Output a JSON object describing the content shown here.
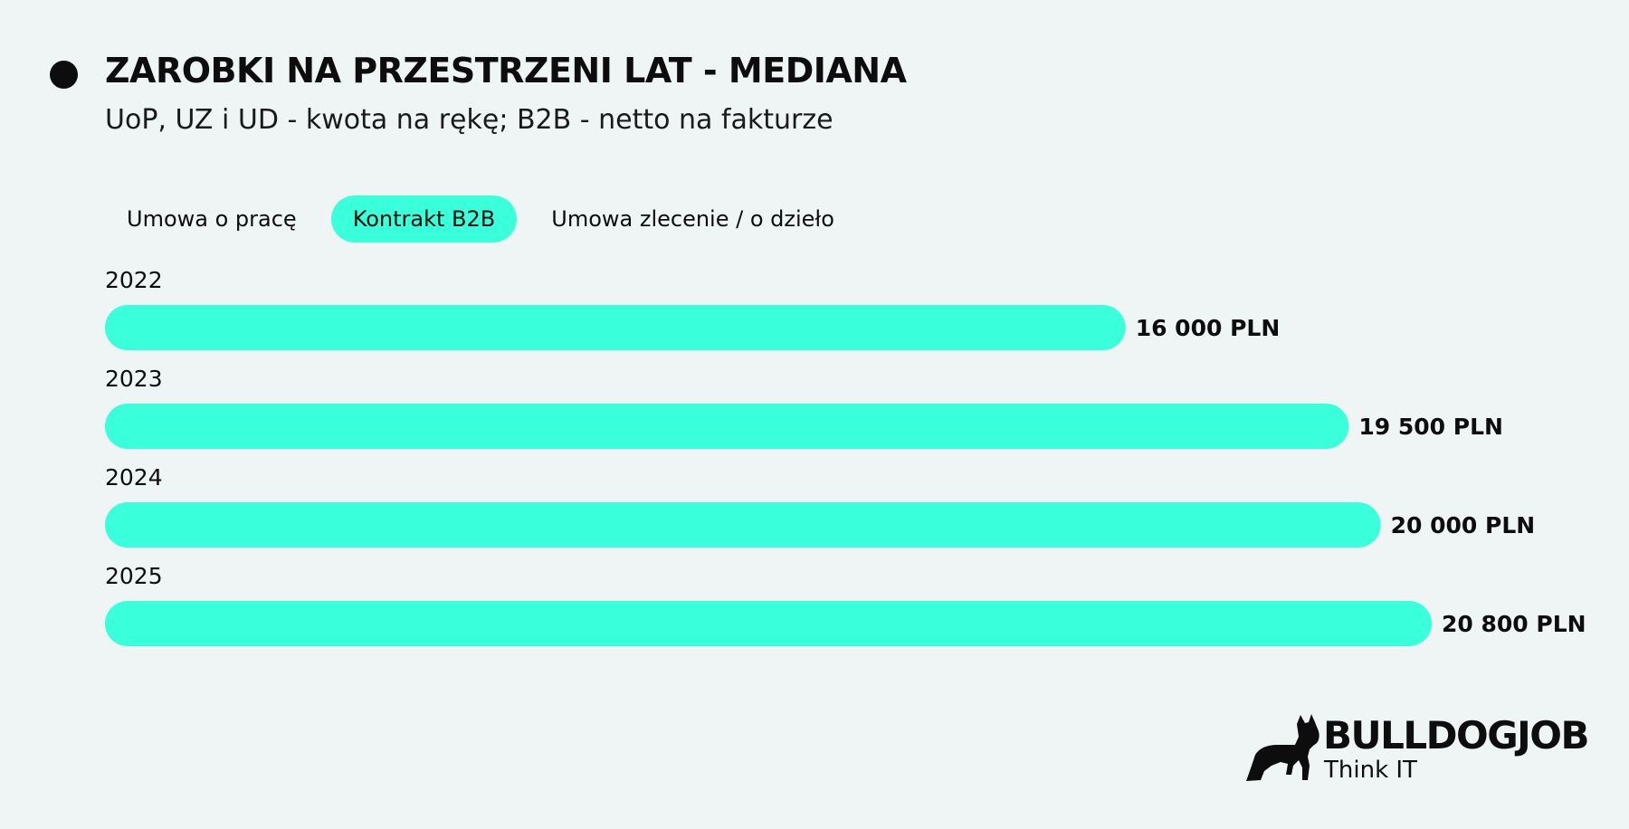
{
  "header": {
    "title": "ZAROBKI NA PRZESTRZENI LAT - MEDIANA",
    "subtitle": "UoP, UZ i UD - kwota na rękę; B2B - netto na fakturze"
  },
  "tabs": [
    {
      "label": "Umowa o pracę",
      "active": false
    },
    {
      "label": "Kontrakt B2B",
      "active": true
    },
    {
      "label": "Umowa zlecenie / o dzieło",
      "active": false
    }
  ],
  "chart_data": {
    "type": "bar",
    "orientation": "horizontal",
    "categories": [
      "2022",
      "2023",
      "2024",
      "2025"
    ],
    "values": [
      16000,
      19500,
      20000,
      20800
    ],
    "value_labels": [
      "16 000 PLN",
      "19 500 PLN",
      "20 000 PLN",
      "20 800 PLN"
    ],
    "unit": "PLN",
    "grid": false,
    "bar_color": "#39ffdb"
  },
  "brand": {
    "name": "BULLDOGJOB",
    "tagline": "Think IT",
    "icon": "bulldog-icon"
  },
  "colors": {
    "accent": "#39ffdb",
    "background": "#eff5f5",
    "text": "#0d0d0d"
  }
}
